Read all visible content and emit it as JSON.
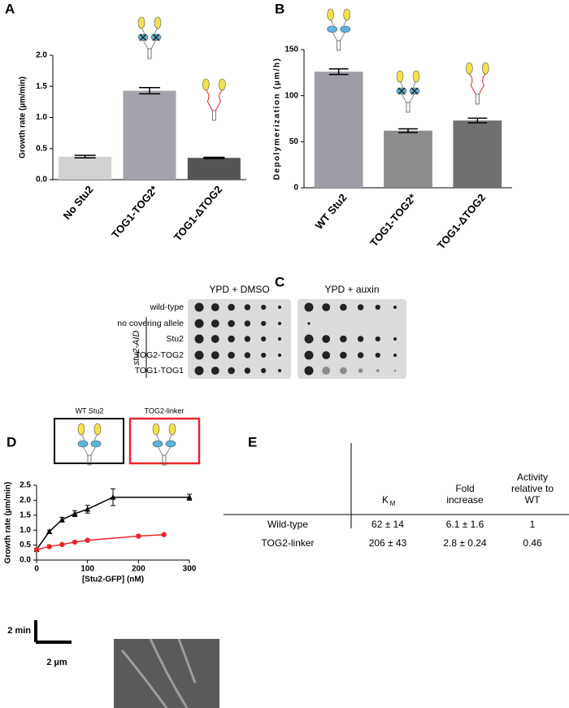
{
  "panels": [
    "A",
    "B",
    "C",
    "D",
    "E"
  ],
  "chart_data": [
    {
      "type": "bar",
      "ylabel": "Growth rate  (µm/min)",
      "categories": [
        "No Stu2",
        "TOG1-TOG2*",
        "TOG1-ΔTOG2"
      ],
      "values": [
        0.37,
        1.43,
        0.35
      ],
      "errors": [
        0.02,
        0.05,
        0.01
      ],
      "colors": [
        "#d2d2d2",
        "#a3a3ab",
        "#555555"
      ],
      "ylim": [
        0,
        2.0
      ],
      "yticks": [
        {
          "value": 0,
          "label": "0.0"
        },
        0.5,
        {
          "value": 1,
          "label": "1.0"
        },
        1.5,
        {
          "value": 2,
          "label": "2.0"
        }
      ]
    },
    {
      "type": "bar",
      "ylabel": "Depolymerization (µm/h)",
      "categories": [
        "WT Stu2",
        "TOG1-TOG2*",
        "TOG1-ΔTOG2"
      ],
      "values": [
        126,
        62,
        73
      ],
      "errors": [
        3,
        2,
        2.5
      ],
      "colors": [
        "#9d9da5",
        "#8c8c8c",
        "#707070"
      ],
      "ylim": [
        0,
        150
      ],
      "yticks": [
        0,
        50,
        100,
        150
      ]
    },
    {
      "type": "line",
      "ylabel": "Growth rate  (µm/min)",
      "xlabel": "[Stu2-GFP] (nM)",
      "series": [
        {
          "name": "WT Stu2",
          "color": "#000000",
          "marker": "triangle",
          "x": [
            0,
            25,
            50,
            75,
            100,
            150,
            300
          ],
          "values": [
            0.35,
            0.95,
            1.35,
            1.55,
            1.7,
            2.1,
            2.1
          ],
          "errors": [
            0.02,
            0.05,
            0.08,
            0.1,
            0.13,
            0.28,
            0.1
          ]
        },
        {
          "name": "TOG2-linker",
          "color": "#e8262a",
          "marker": "circle",
          "x": [
            0,
            25,
            50,
            75,
            100,
            200,
            250
          ],
          "values": [
            0.35,
            0.45,
            0.52,
            0.6,
            0.66,
            0.8,
            0.85
          ]
        }
      ],
      "xlim": [
        0,
        300
      ],
      "xticks": [
        0,
        100,
        200,
        300
      ],
      "ylim": [
        0,
        2.5
      ],
      "yticks": [
        {
          "value": 0,
          "label": "0.0"
        },
        0.5,
        {
          "value": 1,
          "label": "1.0"
        },
        1.5,
        {
          "value": 2,
          "label": "2.0"
        },
        2.5
      ]
    }
  ],
  "plates": {
    "conditions": [
      "YPD + DMSO",
      "YPD + auxin"
    ],
    "strains": [
      "wild-type",
      "no covering allele",
      "Stu2",
      "TOG2-TOG2",
      "TOG1-TOG1"
    ],
    "group": "stu2-AID"
  },
  "table": {
    "columns": [
      {
        "text": "K",
        "sub": "M"
      },
      {
        "lines": [
          "Fold",
          "increase"
        ]
      },
      {
        "lines": [
          "Activity",
          "relative to",
          "WT"
        ]
      }
    ],
    "rows": [
      [
        "Wild-type",
        "62 ± 14",
        "6.1 ± 1.6",
        "1"
      ],
      [
        "TOG2-linker",
        "206 ± 43",
        "2.8 ± 0.24",
        "0.46"
      ]
    ]
  },
  "scale": {
    "time": "2 min",
    "length": "2 µm"
  }
}
